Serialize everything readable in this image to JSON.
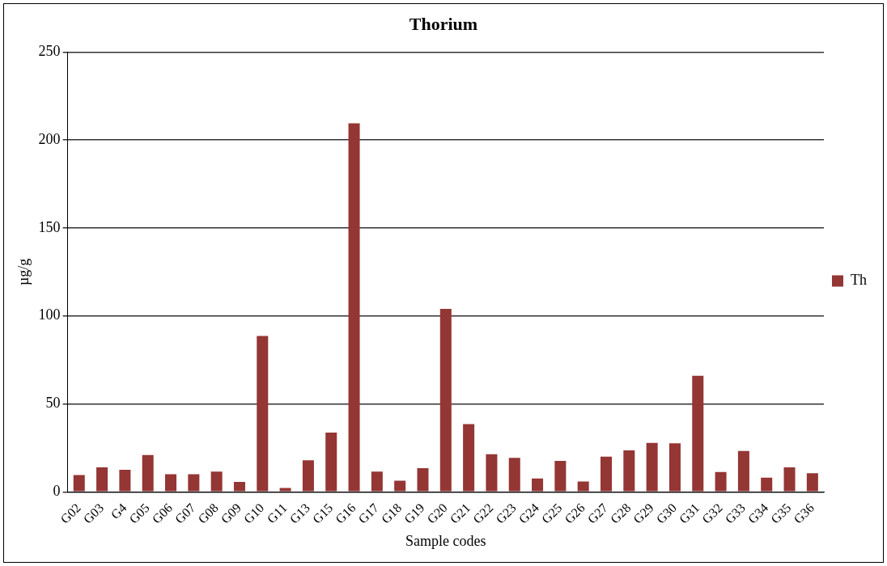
{
  "chart_data": {
    "type": "bar",
    "title": "Thorium",
    "xlabel": "Sample codes",
    "ylabel": "µg/g",
    "categories": [
      "G02",
      "G03",
      "G4",
      "G05",
      "G06",
      "G07",
      "G08",
      "G09",
      "G10",
      "G11",
      "G13",
      "G15",
      "G16",
      "G17",
      "G18",
      "G19",
      "G20",
      "G21",
      "G22",
      "G23",
      "G24",
      "G25",
      "G26",
      "G27",
      "G28",
      "G29",
      "G30",
      "G31",
      "G32",
      "G33",
      "G34",
      "G35",
      "G36"
    ],
    "series": [
      {
        "name": "Th",
        "color": "#943634",
        "values": [
          9.6,
          14,
          12.6,
          21,
          10,
          10,
          11.5,
          5.7,
          88.6,
          2.2,
          18,
          33.7,
          209.5,
          11.5,
          6.4,
          13.5,
          104,
          38.5,
          21.4,
          19.4,
          7.6,
          17.6,
          5.9,
          20,
          23.6,
          27.8,
          27.6,
          66,
          11.3,
          23.3,
          8.1,
          13.9,
          10.6
        ]
      }
    ],
    "ylim": [
      0,
      250
    ],
    "yticks": [
      0,
      50,
      100,
      150,
      200,
      250
    ],
    "grid": "y",
    "legend": "right"
  }
}
